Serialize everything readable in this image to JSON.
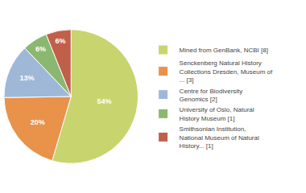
{
  "chart_data": {
    "type": "pie",
    "categories": [
      "Mined from GenBank, NCBI [8]",
      "Senckenberg Natural History\nCollections Dresden, Museum of\n... [3]",
      "Centre for Biodiversity\nGenomics [2]",
      "University of Oslo, Natural\nHistory Museum [1]",
      "Smithsonian Institution,\nNational Museum of Natural\nHistory... [1]"
    ],
    "values": [
      54,
      20,
      13,
      6,
      6
    ],
    "value_labels": [
      "54%",
      "20%",
      "13%",
      "6%",
      "6%"
    ],
    "colors": [
      "#c8d46e",
      "#e8924a",
      "#a0b8d8",
      "#8ab870",
      "#c0604a"
    ],
    "data_labels": true,
    "legend": "right"
  }
}
